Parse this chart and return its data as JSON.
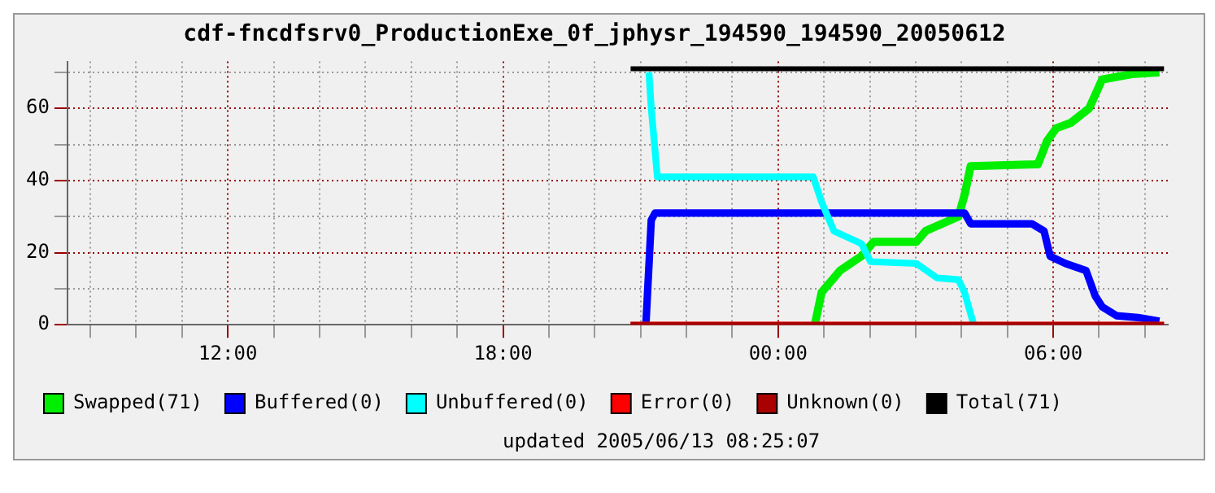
{
  "chart_data": {
    "type": "line",
    "title": "cdf-fncdfsrv0_ProductionExe_0f_jphysr_194590_194590_20050612",
    "xlim": [
      "2005-06-12T08:30",
      "2005-06-13T08:30"
    ],
    "ylim": [
      0,
      73
    ],
    "xticks": [
      {
        "value": "2005-06-12T09:00",
        "label": null
      },
      {
        "value": "2005-06-12T10:00",
        "label": null
      },
      {
        "value": "2005-06-12T11:00",
        "label": null
      },
      {
        "value": "2005-06-12T12:00",
        "label": "12:00"
      },
      {
        "value": "2005-06-12T13:00",
        "label": null
      },
      {
        "value": "2005-06-12T14:00",
        "label": null
      },
      {
        "value": "2005-06-12T15:00",
        "label": null
      },
      {
        "value": "2005-06-12T16:00",
        "label": null
      },
      {
        "value": "2005-06-12T17:00",
        "label": null
      },
      {
        "value": "2005-06-12T18:00",
        "label": "18:00"
      },
      {
        "value": "2005-06-12T19:00",
        "label": null
      },
      {
        "value": "2005-06-12T20:00",
        "label": null
      },
      {
        "value": "2005-06-12T21:00",
        "label": null
      },
      {
        "value": "2005-06-12T22:00",
        "label": null
      },
      {
        "value": "2005-06-12T23:00",
        "label": null
      },
      {
        "value": "2005-06-13T00:00",
        "label": "00:00"
      },
      {
        "value": "2005-06-13T01:00",
        "label": null
      },
      {
        "value": "2005-06-13T02:00",
        "label": null
      },
      {
        "value": "2005-06-13T03:00",
        "label": null
      },
      {
        "value": "2005-06-13T04:00",
        "label": null
      },
      {
        "value": "2005-06-13T05:00",
        "label": null
      },
      {
        "value": "2005-06-13T06:00",
        "label": "06:00"
      },
      {
        "value": "2005-06-13T07:00",
        "label": null
      },
      {
        "value": "2005-06-13T08:00",
        "label": null
      }
    ],
    "yticks": [
      0,
      {
        "value": 10,
        "label": null
      },
      20,
      {
        "value": 30,
        "label": null
      },
      40,
      {
        "value": 50,
        "label": null
      },
      60,
      {
        "value": 70,
        "label": null
      }
    ],
    "grid": true,
    "legend": "bottom",
    "marker": "none",
    "line_style": "solid",
    "annotations": [
      "updated 2005/06/13 08:25:07"
    ],
    "series": [
      {
        "name": "Swapped(71)",
        "color": "#00ee00",
        "x": [
          "2005-06-13T00:48",
          "2005-06-13T00:57",
          "2005-06-13T01:21",
          "2005-06-13T01:49",
          "2005-06-13T02:05",
          "2005-06-13T03:01",
          "2005-06-13T03:13",
          "2005-06-13T03:56",
          "2005-06-13T04:04",
          "2005-06-13T04:12",
          "2005-06-13T05:40",
          "2005-06-13T05:52",
          "2005-06-13T06:04",
          "2005-06-13T06:23",
          "2005-06-13T06:47",
          "2005-06-13T07:04",
          "2005-06-13T07:43",
          "2005-06-13T08:19"
        ],
        "values": [
          0,
          9,
          15,
          19,
          23,
          23,
          26,
          30,
          36,
          44,
          44.5,
          51,
          54.5,
          56,
          60,
          68,
          69.5,
          70
        ]
      },
      {
        "name": "Buffered(0)",
        "color": "#0000ff",
        "x": [
          "2005-06-12T21:07",
          "2005-06-12T21:14",
          "2005-06-12T21:19",
          "2005-06-13T04:04",
          "2005-06-13T04:12",
          "2005-06-13T05:32",
          "2005-06-13T05:48",
          "2005-06-13T05:56",
          "2005-06-13T06:16",
          "2005-06-13T06:43",
          "2005-06-13T06:55",
          "2005-06-13T07:04",
          "2005-06-13T07:23",
          "2005-06-13T07:51",
          "2005-06-13T08:19"
        ],
        "values": [
          0,
          29,
          31,
          31,
          28,
          28,
          26,
          19,
          17,
          15,
          8,
          5,
          2.5,
          2,
          1
        ]
      },
      {
        "name": "Unbuffered(0)",
        "color": "#00ffff",
        "x": [
          "2005-06-12T21:11",
          "2005-06-12T21:14",
          "2005-06-12T21:22",
          "2005-06-13T00:46",
          "2005-06-13T00:57",
          "2005-06-13T01:13",
          "2005-06-13T01:49",
          "2005-06-13T02:01",
          "2005-06-13T03:01",
          "2005-06-13T03:28",
          "2005-06-13T03:56",
          "2005-06-13T04:04",
          "2005-06-13T04:16"
        ],
        "values": [
          70,
          60,
          41,
          41,
          34,
          26,
          22.5,
          17.5,
          17,
          13,
          12.5,
          9,
          0
        ]
      },
      {
        "name": "Error(0)",
        "color": "#ff0000",
        "x": [
          "2005-06-12T20:47",
          "2005-06-13T08:25"
        ],
        "values": [
          0,
          0
        ]
      },
      {
        "name": "Unknown(0)",
        "color": "#aa0000",
        "x": [
          "2005-06-12T20:47",
          "2005-06-13T08:25"
        ],
        "values": [
          0,
          0
        ]
      },
      {
        "name": "Total(71)",
        "color": "#000000",
        "x": [
          "2005-06-12T20:47",
          "2005-06-13T08:25"
        ],
        "values": [
          71,
          71
        ]
      }
    ]
  }
}
